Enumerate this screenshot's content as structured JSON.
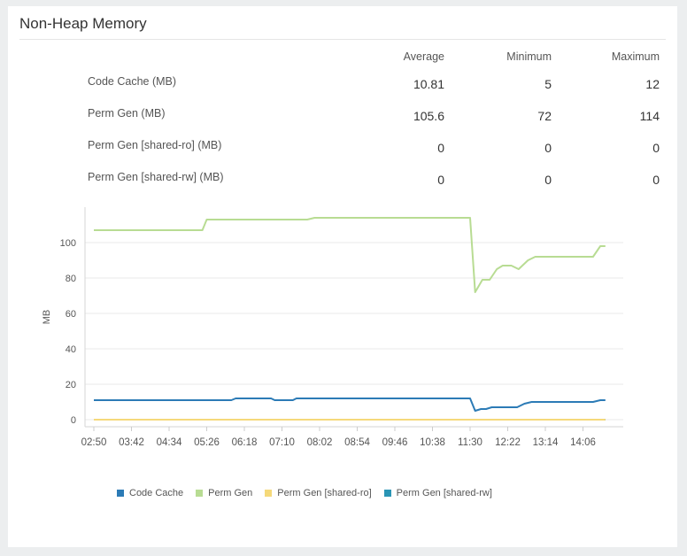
{
  "panel": {
    "title": "Non-Heap Memory"
  },
  "stats": {
    "headers": [
      "Average",
      "Minimum",
      "Maximum"
    ],
    "rows": [
      {
        "label": "Code Cache (MB)",
        "average": "10.81",
        "minimum": "5",
        "maximum": "12"
      },
      {
        "label": "Perm Gen (MB)",
        "average": "105.6",
        "minimum": "72",
        "maximum": "114"
      },
      {
        "label": "Perm Gen [shared-ro] (MB)",
        "average": "0",
        "minimum": "0",
        "maximum": "0"
      },
      {
        "label": "Perm Gen [shared-rw] (MB)",
        "average": "0",
        "minimum": "0",
        "maximum": "0"
      }
    ]
  },
  "chart_data": {
    "type": "line",
    "ylabel": "MB",
    "xlabel": "",
    "ylim": [
      0,
      110
    ],
    "xlim": [
      "02:50",
      "14:45"
    ],
    "yticks": [
      0,
      20,
      40,
      60,
      80,
      100
    ],
    "xticks": [
      "02:50",
      "03:42",
      "04:34",
      "05:26",
      "06:18",
      "07:10",
      "08:02",
      "08:54",
      "09:46",
      "10:38",
      "11:30",
      "12:22",
      "13:14",
      "14:06"
    ],
    "grid": true,
    "legend": "bottom",
    "series": [
      {
        "name": "Code Cache",
        "color": "#2c7bb6",
        "points": [
          [
            "02:50",
            11
          ],
          [
            "06:00",
            11
          ],
          [
            "06:06",
            12
          ],
          [
            "06:55",
            12
          ],
          [
            "07:00",
            11
          ],
          [
            "07:25",
            11
          ],
          [
            "07:30",
            12
          ],
          [
            "11:30",
            12
          ],
          [
            "11:37",
            5
          ],
          [
            "11:45",
            6
          ],
          [
            "11:52",
            6
          ],
          [
            "12:00",
            7
          ],
          [
            "12:35",
            7
          ],
          [
            "12:45",
            9
          ],
          [
            "12:55",
            10
          ],
          [
            "14:20",
            10
          ],
          [
            "14:30",
            11
          ],
          [
            "14:37",
            11
          ]
        ]
      },
      {
        "name": "Perm Gen",
        "color": "#b8dc93",
        "points": [
          [
            "02:50",
            107
          ],
          [
            "05:20",
            107
          ],
          [
            "05:26",
            113
          ],
          [
            "07:45",
            113
          ],
          [
            "07:55",
            114
          ],
          [
            "11:30",
            114
          ],
          [
            "11:37",
            72
          ],
          [
            "11:47",
            79
          ],
          [
            "11:57",
            79
          ],
          [
            "12:07",
            85
          ],
          [
            "12:15",
            87
          ],
          [
            "12:27",
            87
          ],
          [
            "12:37",
            85
          ],
          [
            "12:50",
            90
          ],
          [
            "13:00",
            92
          ],
          [
            "14:20",
            92
          ],
          [
            "14:30",
            98
          ],
          [
            "14:37",
            98
          ]
        ]
      },
      {
        "name": "Perm Gen [shared-ro]",
        "color": "#f5d97a",
        "points": [
          [
            "02:50",
            0
          ],
          [
            "14:37",
            0
          ]
        ]
      },
      {
        "name": "Perm Gen [shared-rw]",
        "color": "#2a95b5",
        "points": [
          [
            "02:50",
            0
          ],
          [
            "14:37",
            0
          ]
        ]
      }
    ]
  }
}
